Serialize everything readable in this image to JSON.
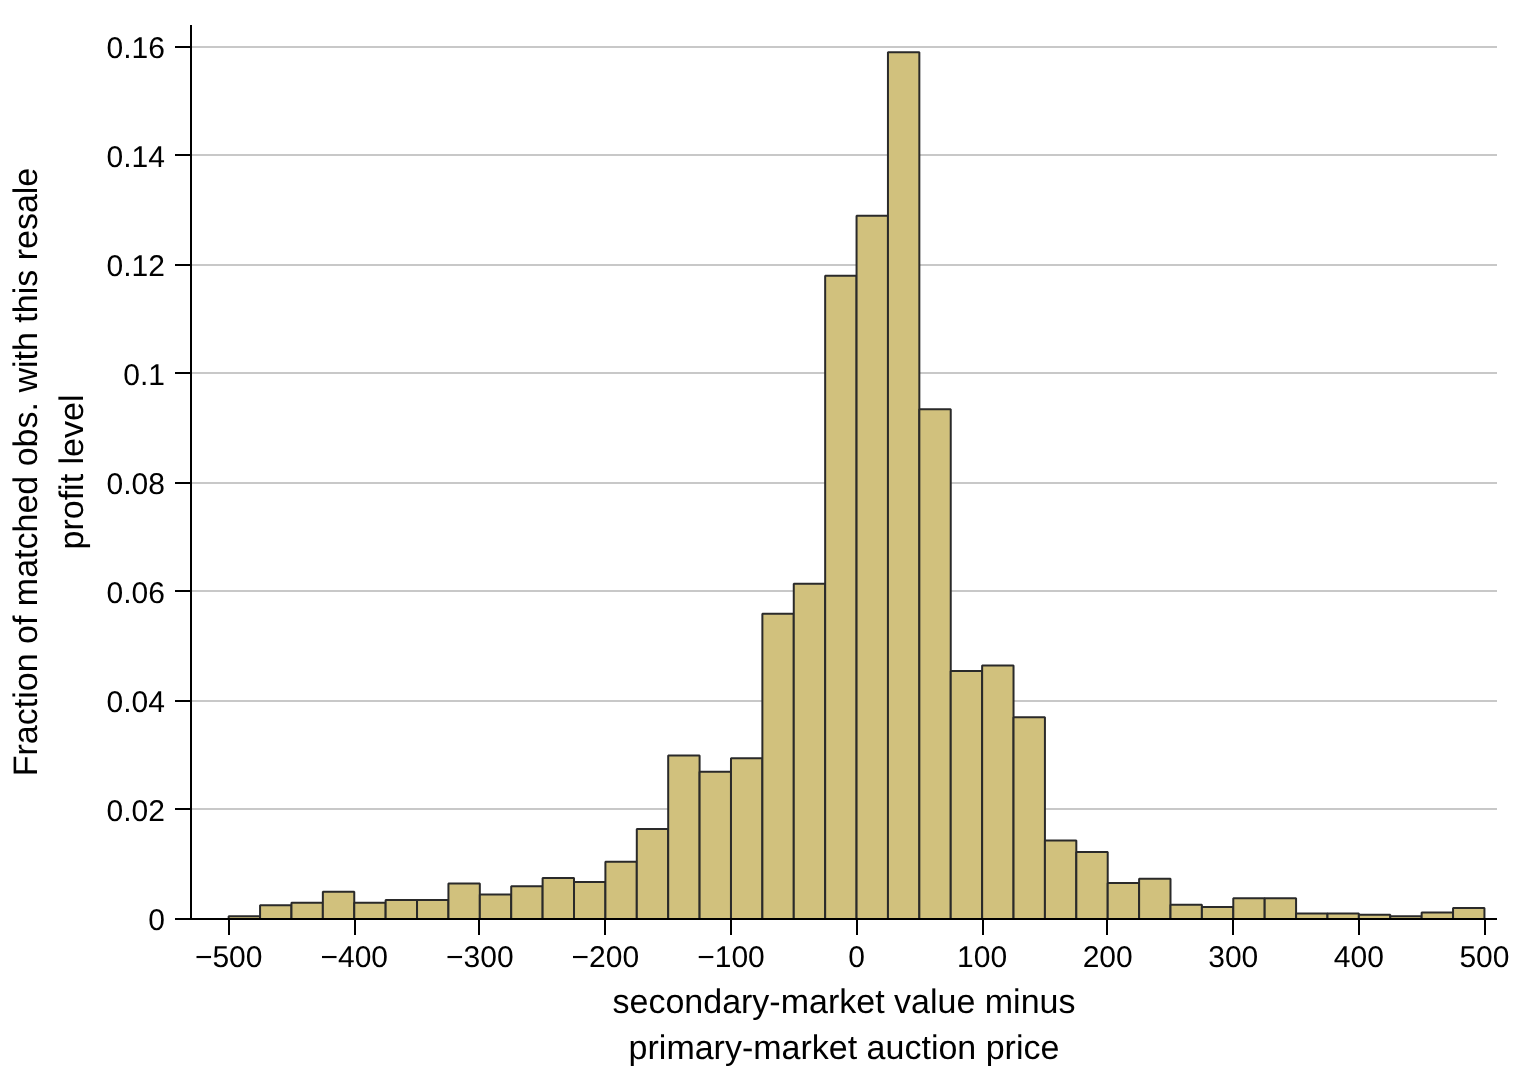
{
  "chart_data": {
    "type": "histogram",
    "xlabel": "secondary-market value minus\nprimary-market auction price",
    "ylabel": "Fraction of matched obs. with this resale\nprofit level",
    "bins": [
      -500,
      -475,
      -450,
      -425,
      -400,
      -375,
      -350,
      -325,
      -300,
      -275,
      -250,
      -225,
      -200,
      -175,
      -150,
      -125,
      -100,
      -75,
      -50,
      -25,
      0,
      25,
      50,
      75,
      100,
      125,
      150,
      175,
      200,
      225,
      250,
      275,
      300,
      325,
      350,
      375,
      400,
      425,
      450,
      475,
      500
    ],
    "values": [
      0.0005,
      0.0025,
      0.003,
      0.005,
      0.003,
      0.0035,
      0.0035,
      0.0065,
      0.0045,
      0.006,
      0.0075,
      0.0068,
      0.0105,
      0.0165,
      0.03,
      0.027,
      0.0295,
      0.056,
      0.0615,
      0.118,
      0.129,
      0.159,
      0.0935,
      0.0455,
      0.0465,
      0.037,
      0.0144,
      0.0123,
      0.0066,
      0.0074,
      0.0026,
      0.0022,
      0.0038,
      0.0038,
      0.001,
      0.001,
      0.0008,
      0.0005,
      0.0012,
      0.002
    ],
    "color": "#d1c17d",
    "xlim": [
      -530,
      510
    ],
    "ylim": [
      0,
      0.164
    ],
    "xticks": [
      {
        "value": -500,
        "label": "−500"
      },
      {
        "value": -400,
        "label": "−400"
      },
      {
        "value": -300,
        "label": "−300"
      },
      {
        "value": -200,
        "label": "−200"
      },
      {
        "value": -100,
        "label": "−100"
      },
      0,
      100,
      200,
      300,
      400,
      500
    ],
    "yticks": [
      0,
      0.02,
      0.04,
      0.06,
      0.08,
      0.1,
      0.12,
      0.14,
      0.16
    ],
    "grid": "y"
  }
}
